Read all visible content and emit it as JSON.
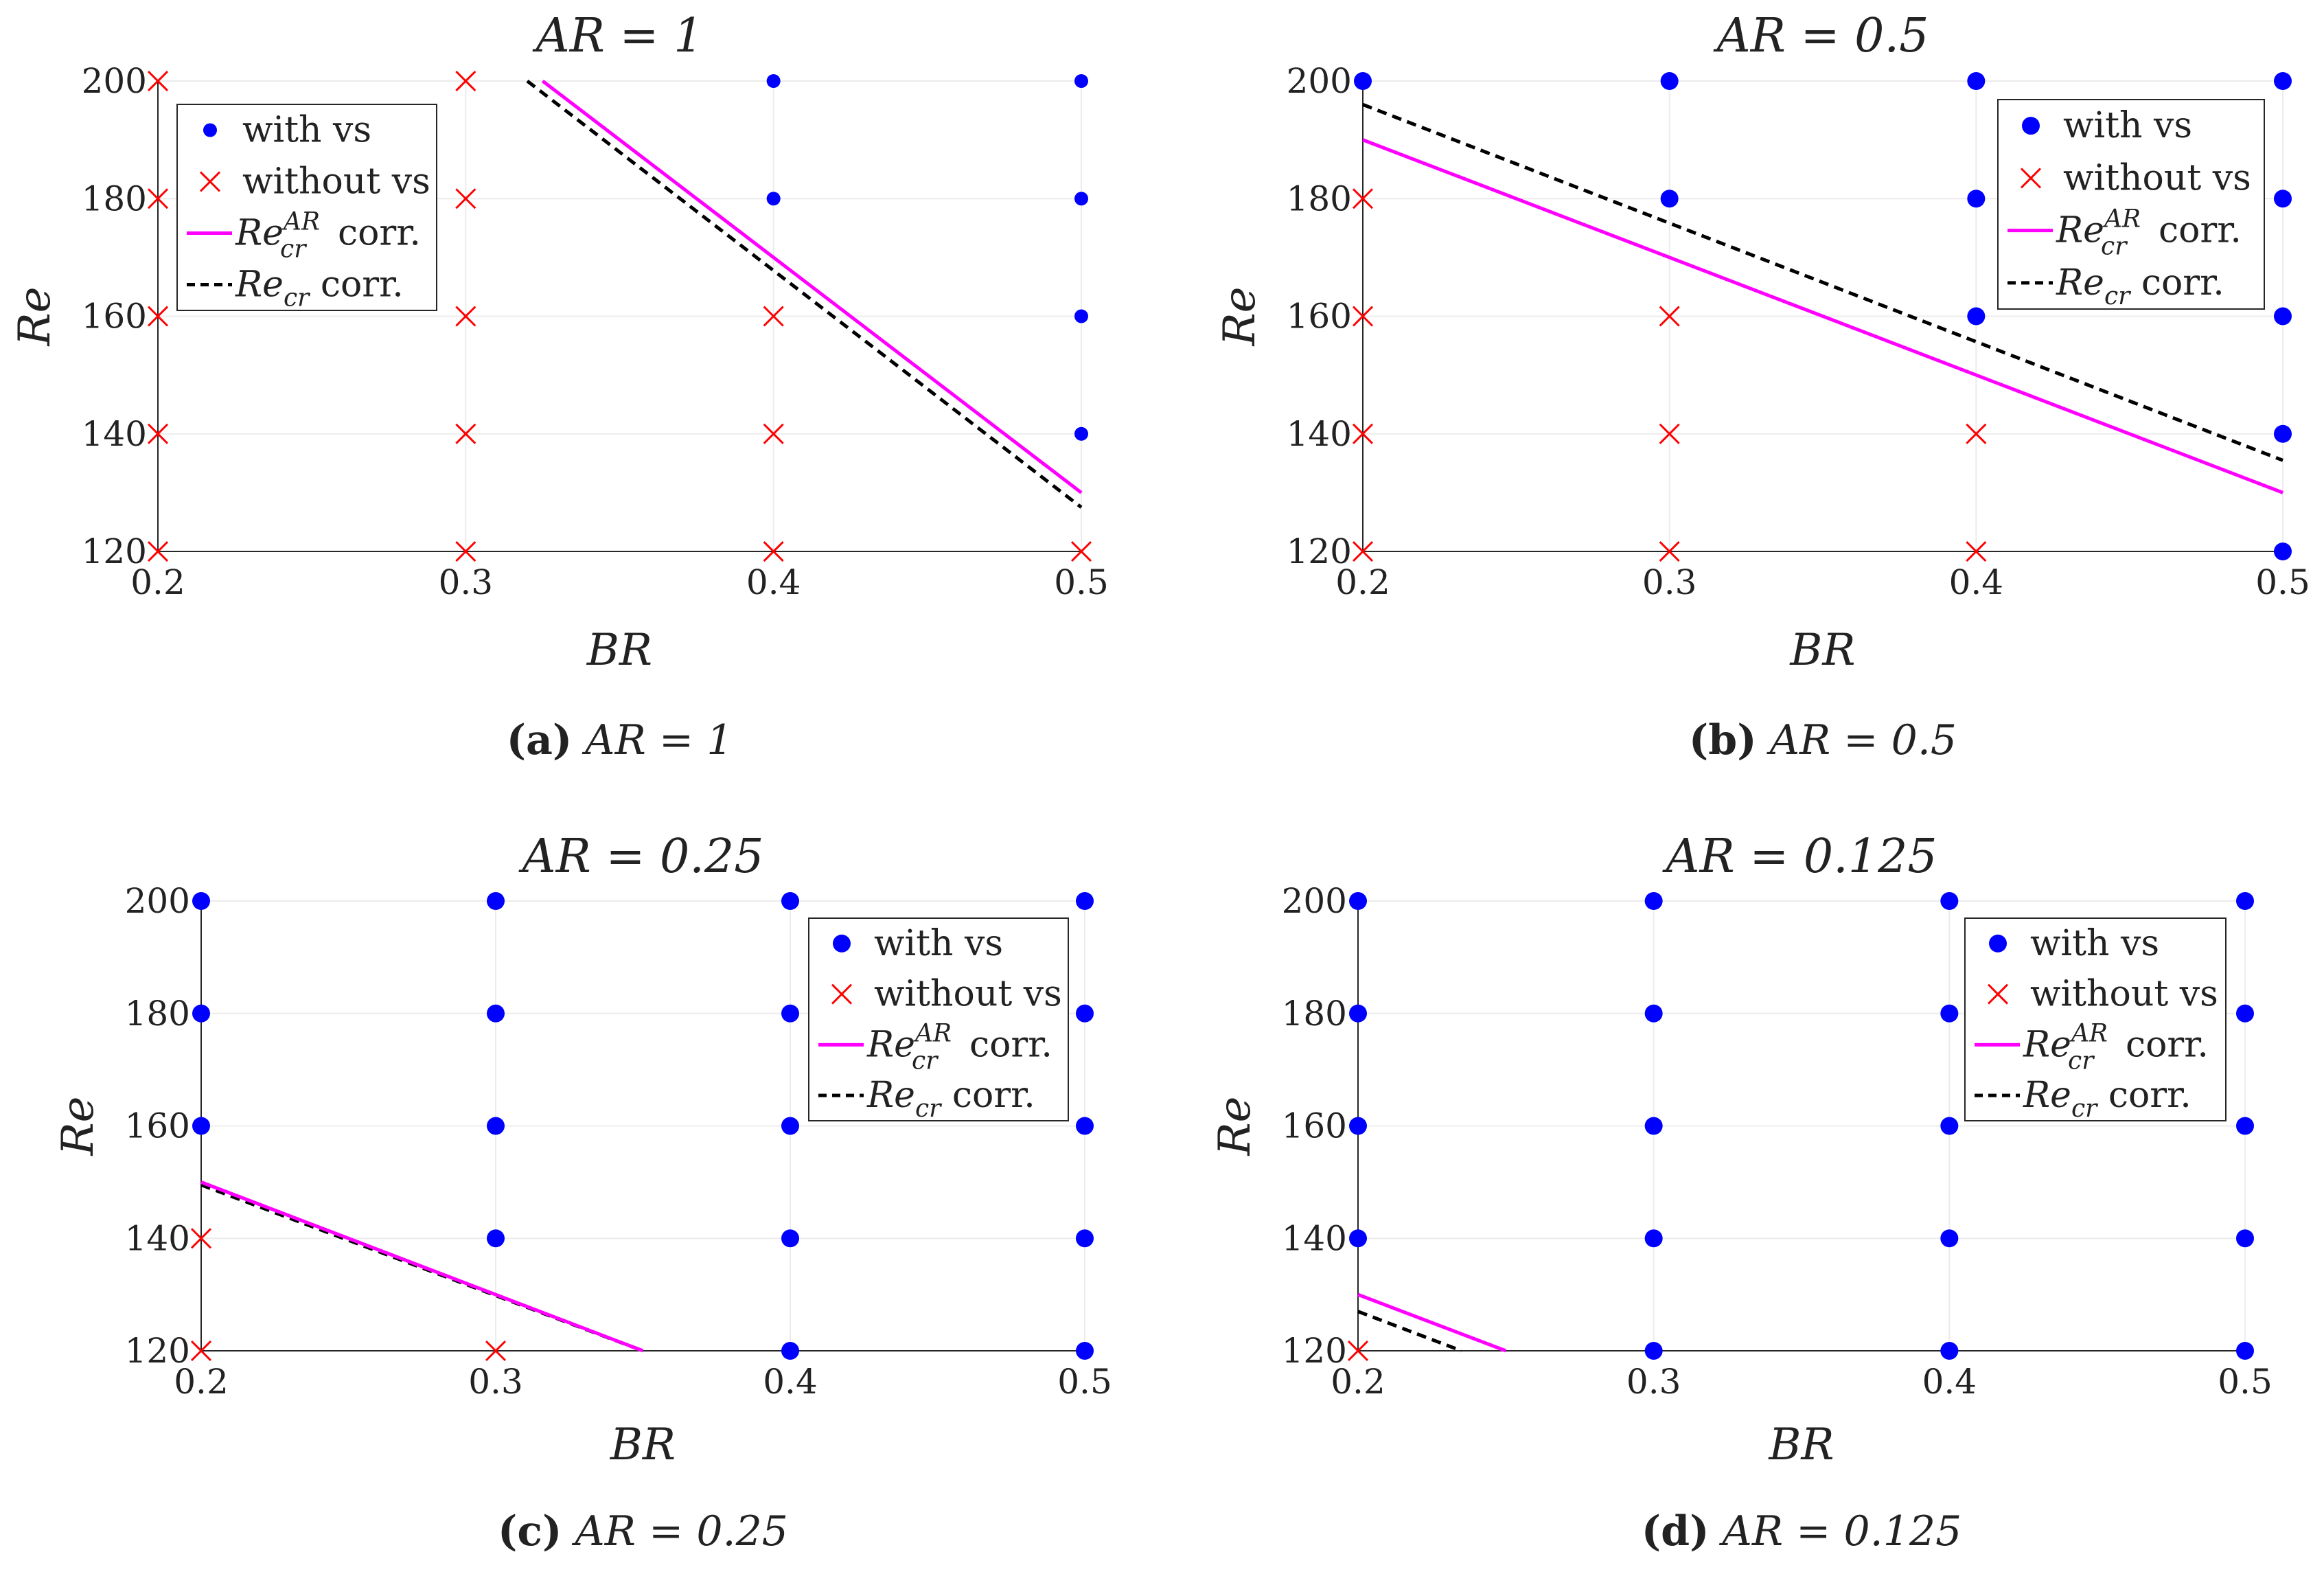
{
  "legend_labels": {
    "with": "with vs",
    "without": "without vs",
    "ar_prefix": "Re",
    "ar_sub": "cr",
    "ar_sup": "AR",
    "ar_suffix": " corr.",
    "cr_prefix": "Re",
    "cr_sub": "cr",
    "cr_suffix": " corr."
  },
  "colors": {
    "with": "#0000ff",
    "without": "#ff0000",
    "ar_line": "#ff00ff",
    "cr_line": "#000000"
  },
  "chart_data": [
    {
      "id": "a",
      "type": "scatter",
      "title": "AR = 1",
      "xlabel": "BR",
      "ylabel": "Re",
      "xlim": [
        0.2,
        0.5
      ],
      "ylim": [
        120,
        200
      ],
      "xticks": [
        "0.2",
        "0.3",
        "0.4",
        "0.5"
      ],
      "yticks": [
        "120",
        "140",
        "160",
        "180",
        "200"
      ],
      "caption_letter": "(a)",
      "caption_text": "AR = 1",
      "legend": "top-left",
      "marker_size": "small",
      "with_vs": [
        [
          0.4,
          180
        ],
        [
          0.4,
          200
        ],
        [
          0.5,
          140
        ],
        [
          0.5,
          160
        ],
        [
          0.5,
          180
        ],
        [
          0.5,
          200
        ]
      ],
      "without_vs": [
        [
          0.2,
          120
        ],
        [
          0.2,
          140
        ],
        [
          0.2,
          160
        ],
        [
          0.2,
          180
        ],
        [
          0.2,
          200
        ],
        [
          0.3,
          120
        ],
        [
          0.3,
          140
        ],
        [
          0.3,
          160
        ],
        [
          0.3,
          180
        ],
        [
          0.3,
          200
        ],
        [
          0.4,
          120
        ],
        [
          0.4,
          140
        ],
        [
          0.4,
          160
        ],
        [
          0.5,
          120
        ]
      ],
      "re_cr_ar_corr": [
        [
          0.325,
          200
        ],
        [
          0.5,
          130
        ]
      ],
      "re_cr_corr": [
        [
          0.32,
          200
        ],
        [
          0.5,
          127.5
        ]
      ]
    },
    {
      "id": "b",
      "type": "scatter",
      "title": "AR = 0.5",
      "xlabel": "BR",
      "ylabel": "Re",
      "xlim": [
        0.2,
        0.5
      ],
      "ylim": [
        120,
        200
      ],
      "xticks": [
        "0.2",
        "0.3",
        "0.4",
        "0.5"
      ],
      "yticks": [
        "120",
        "140",
        "160",
        "180",
        "200"
      ],
      "caption_letter": "(b)",
      "caption_text": "AR = 0.5",
      "legend": "top-right",
      "marker_size": "large",
      "with_vs": [
        [
          0.2,
          200
        ],
        [
          0.3,
          180
        ],
        [
          0.3,
          200
        ],
        [
          0.4,
          160
        ],
        [
          0.4,
          180
        ],
        [
          0.4,
          200
        ],
        [
          0.5,
          120
        ],
        [
          0.5,
          140
        ],
        [
          0.5,
          160
        ],
        [
          0.5,
          180
        ],
        [
          0.5,
          200
        ]
      ],
      "without_vs": [
        [
          0.2,
          120
        ],
        [
          0.2,
          140
        ],
        [
          0.2,
          160
        ],
        [
          0.2,
          180
        ],
        [
          0.3,
          120
        ],
        [
          0.3,
          140
        ],
        [
          0.3,
          160
        ],
        [
          0.4,
          120
        ],
        [
          0.4,
          140
        ]
      ],
      "re_cr_ar_corr": [
        [
          0.2,
          190
        ],
        [
          0.5,
          130
        ]
      ],
      "re_cr_corr": [
        [
          0.2,
          196
        ],
        [
          0.5,
          135.5
        ]
      ]
    },
    {
      "id": "c",
      "type": "scatter",
      "title": "AR = 0.25",
      "xlabel": "BR",
      "ylabel": "Re",
      "xlim": [
        0.2,
        0.5
      ],
      "ylim": [
        120,
        200
      ],
      "xticks": [
        "0.2",
        "0.3",
        "0.4",
        "0.5"
      ],
      "yticks": [
        "120",
        "140",
        "160",
        "180",
        "200"
      ],
      "caption_letter": "(c)",
      "caption_text": "AR = 0.25",
      "legend": "top-right",
      "marker_size": "large",
      "with_vs": [
        [
          0.2,
          160
        ],
        [
          0.2,
          180
        ],
        [
          0.2,
          200
        ],
        [
          0.3,
          140
        ],
        [
          0.3,
          160
        ],
        [
          0.3,
          180
        ],
        [
          0.3,
          200
        ],
        [
          0.4,
          120
        ],
        [
          0.4,
          140
        ],
        [
          0.4,
          160
        ],
        [
          0.4,
          180
        ],
        [
          0.4,
          200
        ],
        [
          0.5,
          120
        ],
        [
          0.5,
          140
        ],
        [
          0.5,
          160
        ],
        [
          0.5,
          180
        ],
        [
          0.5,
          200
        ]
      ],
      "without_vs": [
        [
          0.2,
          120
        ],
        [
          0.2,
          140
        ],
        [
          0.3,
          120
        ]
      ],
      "re_cr_ar_corr": [
        [
          0.2,
          150
        ],
        [
          0.35,
          120
        ]
      ],
      "re_cr_corr": [
        [
          0.2,
          149.5
        ],
        [
          0.35,
          120
        ]
      ]
    },
    {
      "id": "d",
      "type": "scatter",
      "title": "AR = 0.125",
      "xlabel": "BR",
      "ylabel": "Re",
      "xlim": [
        0.2,
        0.5
      ],
      "ylim": [
        120,
        200
      ],
      "xticks": [
        "0.2",
        "0.3",
        "0.4",
        "0.5"
      ],
      "yticks": [
        "120",
        "140",
        "160",
        "180",
        "200"
      ],
      "caption_letter": "(d)",
      "caption_text": "AR = 0.125",
      "legend": "top-right",
      "marker_size": "large",
      "with_vs": [
        [
          0.2,
          140
        ],
        [
          0.2,
          160
        ],
        [
          0.2,
          180
        ],
        [
          0.2,
          200
        ],
        [
          0.3,
          120
        ],
        [
          0.3,
          140
        ],
        [
          0.3,
          160
        ],
        [
          0.3,
          180
        ],
        [
          0.3,
          200
        ],
        [
          0.4,
          120
        ],
        [
          0.4,
          140
        ],
        [
          0.4,
          160
        ],
        [
          0.4,
          180
        ],
        [
          0.4,
          200
        ],
        [
          0.5,
          120
        ],
        [
          0.5,
          140
        ],
        [
          0.5,
          160
        ],
        [
          0.5,
          180
        ],
        [
          0.5,
          200
        ]
      ],
      "without_vs": [
        [
          0.2,
          120
        ]
      ],
      "re_cr_ar_corr": [
        [
          0.2,
          130
        ],
        [
          0.25,
          120
        ]
      ],
      "re_cr_corr": [
        [
          0.2,
          127
        ],
        [
          0.235,
          120
        ]
      ]
    }
  ]
}
